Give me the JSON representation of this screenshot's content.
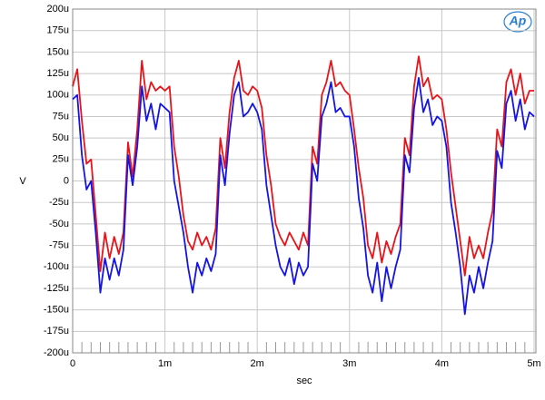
{
  "chart_data": {
    "type": "line",
    "x_label": "sec",
    "y_label": "V",
    "logo": "Ap",
    "grid": true,
    "x": [
      0,
      5e-05,
      0.0001,
      0.00015,
      0.0002,
      0.00025,
      0.0003,
      0.00035,
      0.0004,
      0.00045,
      0.0005,
      0.00055,
      0.0006,
      0.00065,
      0.0007,
      0.00075,
      0.0008,
      0.00085,
      0.0009,
      0.00095,
      0.001,
      0.00105,
      0.0011,
      0.00115,
      0.0012,
      0.00125,
      0.0013,
      0.00135,
      0.0014,
      0.00145,
      0.0015,
      0.00155,
      0.0016,
      0.00165,
      0.0017,
      0.00175,
      0.0018,
      0.00185,
      0.0019,
      0.00195,
      0.002,
      0.00205,
      0.0021,
      0.00215,
      0.0022,
      0.00225,
      0.0023,
      0.00235,
      0.0024,
      0.00245,
      0.0025,
      0.00255,
      0.0026,
      0.00265,
      0.0027,
      0.00275,
      0.0028,
      0.00285,
      0.0029,
      0.00295,
      0.003,
      0.00305,
      0.0031,
      0.00315,
      0.0032,
      0.00325,
      0.0033,
      0.00335,
      0.0034,
      0.00345,
      0.0035,
      0.00355,
      0.0036,
      0.00365,
      0.0037,
      0.00375,
      0.0038,
      0.00385,
      0.0039,
      0.00395,
      0.004,
      0.00405,
      0.0041,
      0.00415,
      0.0042,
      0.00425,
      0.0043,
      0.00435,
      0.0044,
      0.00445,
      0.0045,
      0.00455,
      0.0046,
      0.00465,
      0.0047,
      0.00475,
      0.0048,
      0.00485,
      0.0049,
      0.00495,
      0.005
    ],
    "series": [
      {
        "color": "#e8141a",
        "values": [
          0.00011,
          0.00013,
          7e-05,
          2e-05,
          2.5e-05,
          -4e-05,
          -0.000105,
          -6e-05,
          -9e-05,
          -6.5e-05,
          -8.5e-05,
          -6e-05,
          4.5e-05,
          5e-06,
          6e-05,
          0.00014,
          9.5e-05,
          0.000115,
          0.000105,
          0.00011,
          0.000105,
          0.00011,
          4e-05,
          5e-06,
          -4e-05,
          -7e-05,
          -8e-05,
          -6e-05,
          -7.5e-05,
          -6.5e-05,
          -8e-05,
          -5.5e-05,
          5e-05,
          1.5e-05,
          8e-05,
          0.00012,
          0.00014,
          0.000105,
          0.0001,
          0.00011,
          0.000105,
          8.5e-05,
          3e-05,
          -5e-06,
          -5e-05,
          -6.5e-05,
          -7.5e-05,
          -6e-05,
          -7e-05,
          -8e-05,
          -6e-05,
          -7.5e-05,
          4e-05,
          2e-05,
          0.0001,
          0.000115,
          0.00014,
          0.00011,
          0.000115,
          0.000105,
          0.0001,
          6e-05,
          1.5e-05,
          -2e-05,
          -7.5e-05,
          -9e-05,
          -6e-05,
          -9.5e-05,
          -7e-05,
          -8.5e-05,
          -6.5e-05,
          -5e-05,
          5e-05,
          3e-05,
          0.00011,
          0.000145,
          0.00011,
          0.00012,
          9.5e-05,
          0.0001,
          9.5e-05,
          6e-05,
          1e-05,
          -3e-05,
          -7e-05,
          -0.00011,
          -6.5e-05,
          -9e-05,
          -7.5e-05,
          -9e-05,
          -6e-05,
          -3.5e-05,
          6e-05,
          4e-05,
          0.000115,
          0.00013,
          0.0001,
          0.000125,
          9e-05,
          0.000105,
          0.000105
        ]
      },
      {
        "color": "#1414e6",
        "values": [
          9.5e-05,
          0.0001,
          3e-05,
          -1e-05,
          0,
          -6e-05,
          -0.00013,
          -9e-05,
          -0.000115,
          -9e-05,
          -0.00011,
          -8e-05,
          3e-05,
          -5e-06,
          4e-05,
          0.00011,
          7e-05,
          9e-05,
          6e-05,
          9e-05,
          8.5e-05,
          8e-05,
          0,
          -3e-05,
          -6e-05,
          -0.0001,
          -0.00013,
          -9.5e-05,
          -0.00011,
          -9e-05,
          -0.000105,
          -8.5e-05,
          3e-05,
          -5e-06,
          5.5e-05,
          0.0001,
          0.000115,
          7.5e-05,
          8e-05,
          9e-05,
          8e-05,
          6e-05,
          -5e-06,
          -4e-05,
          -7.5e-05,
          -0.0001,
          -0.00011,
          -9e-05,
          -0.00012,
          -9.5e-05,
          -0.00011,
          -0.0001,
          2e-05,
          0,
          7.5e-05,
          9e-05,
          0.000115,
          8e-05,
          8.5e-05,
          7.5e-05,
          7.5e-05,
          4e-05,
          -2e-05,
          -5.5e-05,
          -0.00011,
          -0.00013,
          -9.5e-05,
          -0.00014,
          -0.0001,
          -0.000125,
          -0.0001,
          -8e-05,
          3e-05,
          1e-05,
          8.5e-05,
          0.00012,
          8e-05,
          9.5e-05,
          6.5e-05,
          7.5e-05,
          7e-05,
          4e-05,
          -2.5e-05,
          -6e-05,
          -0.0001,
          -0.000155,
          -0.00011,
          -0.00013,
          -0.0001,
          -0.000125,
          -9.5e-05,
          -7e-05,
          3.5e-05,
          1.5e-05,
          9e-05,
          0.000105,
          7e-05,
          9.5e-05,
          6e-05,
          8e-05,
          7.5e-05
        ]
      }
    ],
    "xlim": [
      0,
      0.00502
    ],
    "xticks": [
      {
        "value": 0,
        "label": "0"
      },
      {
        "value": 0.001,
        "label": "1m"
      },
      {
        "value": 0.002,
        "label": "2m"
      },
      {
        "value": 0.003,
        "label": "3m"
      },
      {
        "value": 0.004,
        "label": "4m"
      },
      {
        "value": 0.005,
        "label": "5m"
      }
    ],
    "ylim": [
      -0.0002,
      0.0002
    ],
    "yticks": [
      {
        "value": -0.0002,
        "label": "-200u"
      },
      {
        "value": -0.000175,
        "label": "-175u"
      },
      {
        "value": -0.00015,
        "label": "-150u"
      },
      {
        "value": -0.000125,
        "label": "-125u"
      },
      {
        "value": -0.0001,
        "label": "-100u"
      },
      {
        "value": -7.5e-05,
        "label": "-75u"
      },
      {
        "value": -5e-05,
        "label": "-50u"
      },
      {
        "value": -2.5e-05,
        "label": "-25u"
      },
      {
        "value": 0,
        "label": "0"
      },
      {
        "value": 2.5e-05,
        "label": "25u"
      },
      {
        "value": 5e-05,
        "label": "50u"
      },
      {
        "value": 7.5e-05,
        "label": "75u"
      },
      {
        "value": 0.0001,
        "label": "100u"
      },
      {
        "value": 0.000125,
        "label": "125u"
      },
      {
        "value": 0.00015,
        "label": "150u"
      },
      {
        "value": 0.000175,
        "label": "175u"
      },
      {
        "value": 0.0002,
        "label": "200u"
      }
    ]
  }
}
